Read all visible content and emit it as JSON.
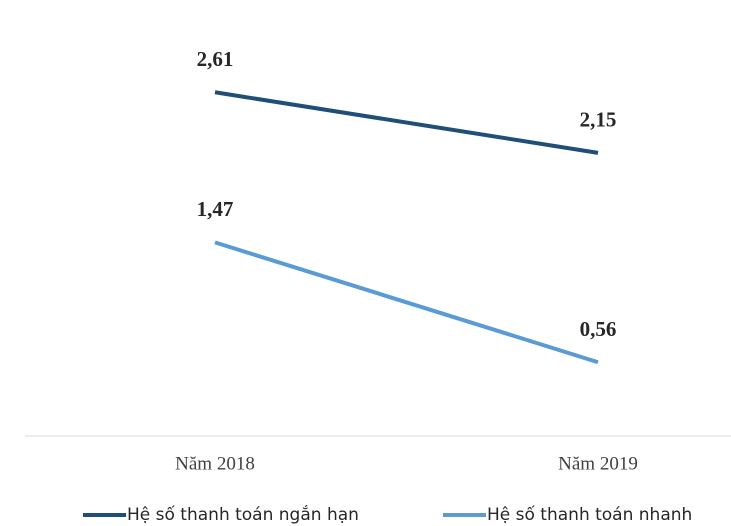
{
  "chart_data": {
    "type": "line",
    "categories": [
      "Năm 2018",
      "Năm 2019"
    ],
    "series": [
      {
        "name": "Hệ số thanh toán ngắn hạn",
        "color": "#1f4e79",
        "values": [
          2.61,
          2.15
        ],
        "value_labels": [
          "2,61",
          "2,15"
        ]
      },
      {
        "name": "Hệ số thanh toán nhanh",
        "color": "#5b9bd5",
        "values": [
          1.47,
          0.56
        ],
        "value_labels": [
          "1,47",
          "0,56"
        ]
      }
    ]
  }
}
